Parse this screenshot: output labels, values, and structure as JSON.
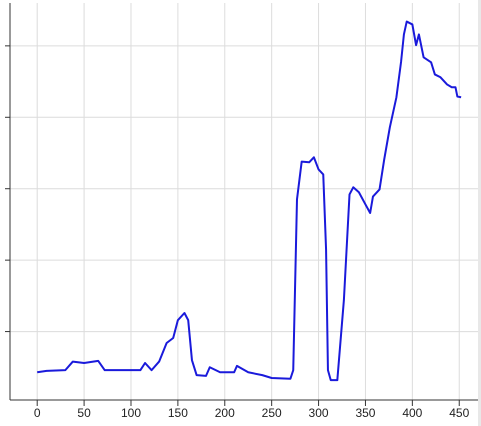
{
  "chart_data": {
    "type": "line",
    "x": [
      0,
      10,
      30,
      38,
      50,
      65,
      72,
      90,
      110,
      115,
      122,
      130,
      138,
      145,
      150,
      157,
      161,
      165,
      170,
      180,
      184,
      195,
      210,
      213,
      225,
      240,
      250,
      270,
      273,
      277,
      282,
      290,
      295,
      300,
      305,
      308,
      310,
      313,
      320,
      327,
      333,
      337,
      343,
      350,
      355,
      358,
      365,
      370,
      376,
      383,
      388,
      391,
      394,
      400,
      404,
      407,
      412,
      420,
      424,
      430,
      437,
      442,
      446,
      448,
      452
    ],
    "series": [
      {
        "color": "#1a1adb",
        "values": [
          0.43,
          0.45,
          0.46,
          0.58,
          0.56,
          0.59,
          0.46,
          0.46,
          0.46,
          0.56,
          0.46,
          0.58,
          0.84,
          0.91,
          1.16,
          1.26,
          1.16,
          0.6,
          0.39,
          0.38,
          0.5,
          0.43,
          0.43,
          0.52,
          0.43,
          0.39,
          0.35,
          0.34,
          0.46,
          2.85,
          3.38,
          3.37,
          3.44,
          3.27,
          3.2,
          2.15,
          0.46,
          0.32,
          0.32,
          1.44,
          2.92,
          3.02,
          2.95,
          2.78,
          2.66,
          2.89,
          2.99,
          3.41,
          3.86,
          4.28,
          4.78,
          5.16,
          5.34,
          5.3,
          5.01,
          5.16,
          4.84,
          4.77,
          4.6,
          4.56,
          4.46,
          4.42,
          4.42,
          4.29,
          4.28
        ]
      }
    ],
    "xlim": [
      -29,
      470
    ],
    "xticks": [
      0,
      50,
      100,
      150,
      200,
      250,
      300,
      350,
      400,
      450
    ],
    "ylim": [
      0,
      5.6
    ],
    "yticks": [
      1,
      2,
      3,
      4,
      5
    ],
    "grid": true
  }
}
